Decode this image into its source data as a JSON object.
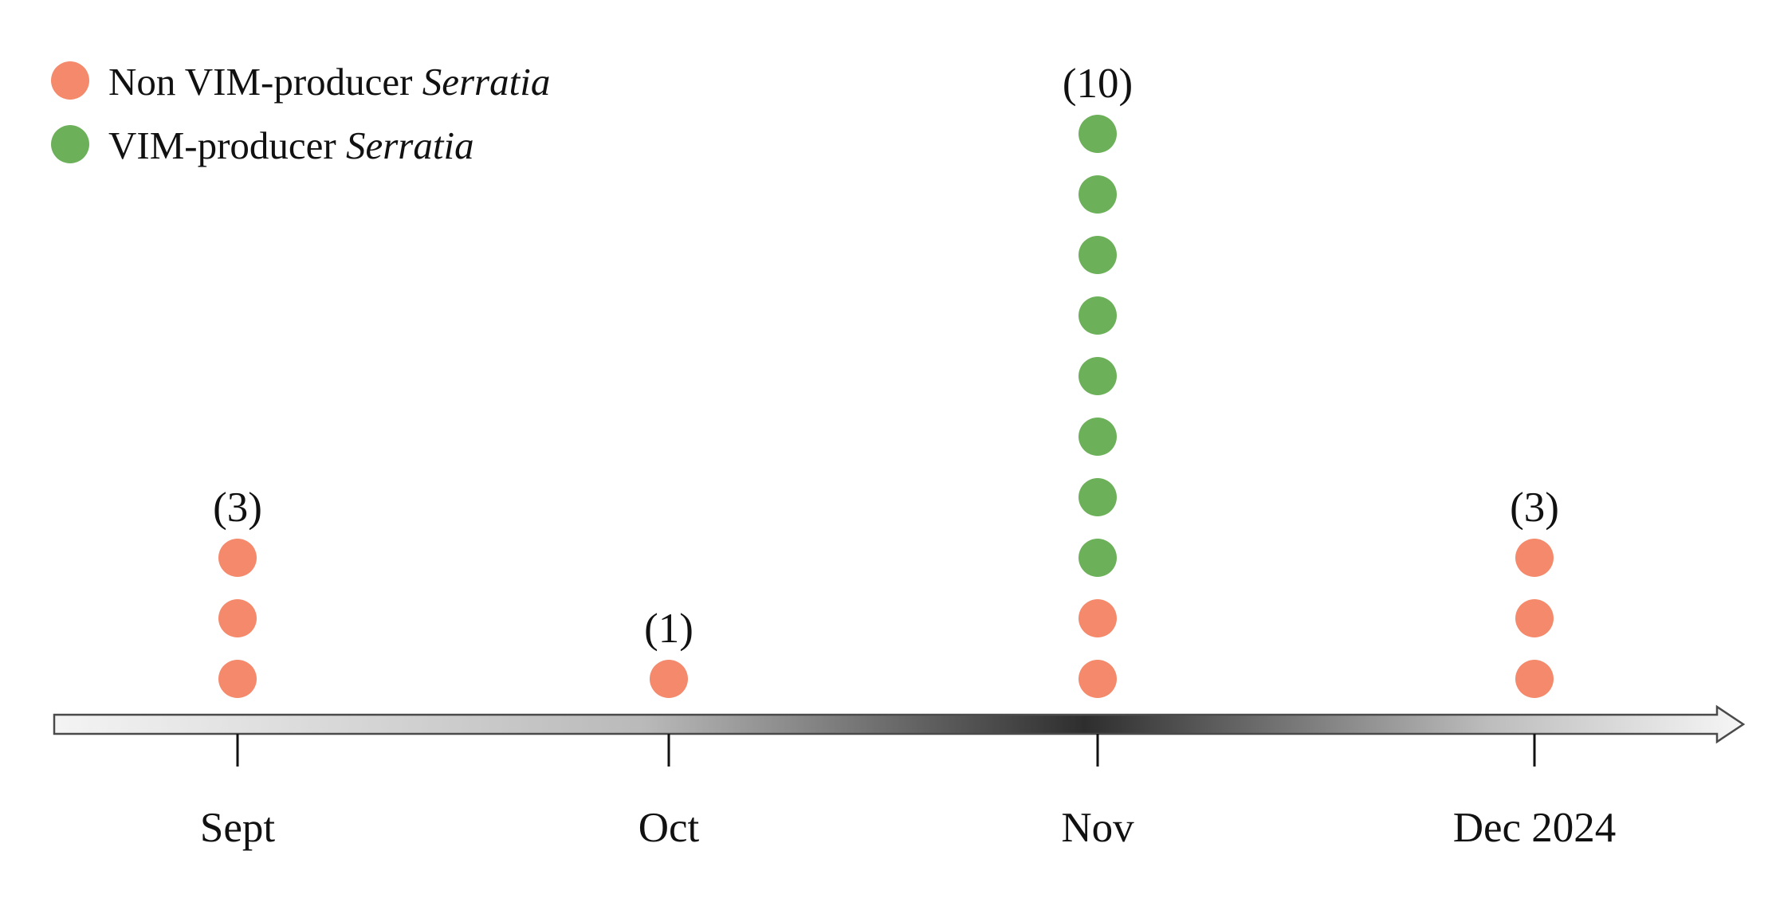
{
  "chart_data": {
    "type": "scatter",
    "title": "",
    "xlabel": "",
    "ylabel": "",
    "categories": [
      "Sept",
      "Oct",
      "Nov",
      "Dec 2024"
    ],
    "series": [
      {
        "name": "Non VIM-producer",
        "name_italic": "Serratia",
        "color": "#F4896B",
        "values": [
          3,
          1,
          2,
          3
        ]
      },
      {
        "name": "VIM-producer",
        "name_italic": "Serratia",
        "color": "#6DB05A",
        "values": [
          0,
          0,
          8,
          0
        ]
      }
    ],
    "totals": [
      3,
      1,
      10,
      3
    ],
    "total_labels": [
      "(3)",
      "(1)",
      "(10)",
      "(3)"
    ],
    "legend_position": "top-left",
    "grid": false,
    "axis_style": "gradient-arrow"
  }
}
